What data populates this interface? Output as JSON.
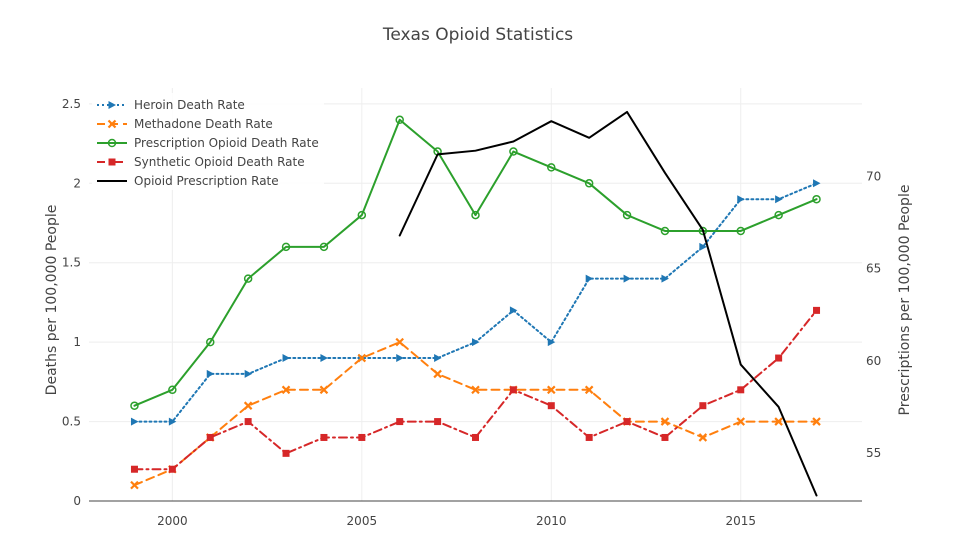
{
  "chart_data": {
    "type": "line",
    "title": "Texas Opioid Statistics",
    "xlabel": "",
    "ylabel": "Deaths per 100,000 People",
    "y2label": "Prescriptions per 100,000 People",
    "xlim": [
      1997.8,
      2018.2
    ],
    "ylim": [
      0,
      2.6
    ],
    "y2lim": [
      52.4,
      74.8
    ],
    "x_ticks": [
      2000,
      2005,
      2010,
      2015
    ],
    "y_ticks": [
      0,
      0.5,
      1,
      1.5,
      2,
      2.5
    ],
    "y_tick_labels": [
      "0",
      "0.5",
      "1",
      "1.5",
      "2",
      "2.5"
    ],
    "y2_ticks": [
      55,
      60,
      65,
      70
    ],
    "grid": true,
    "legend_position": "top-left",
    "series": [
      {
        "name": "Heroin Death Rate",
        "axis": "y",
        "color": "#1f77b4",
        "dash": "dotted",
        "marker": "triangle-right",
        "x": [
          1999,
          2000,
          2001,
          2002,
          2003,
          2004,
          2005,
          2006,
          2007,
          2008,
          2009,
          2010,
          2011,
          2012,
          2013,
          2014,
          2015,
          2016,
          2017
        ],
        "values": [
          0.5,
          0.5,
          0.8,
          0.8,
          0.9,
          0.9,
          0.9,
          0.9,
          0.9,
          1.0,
          1.2,
          1.0,
          1.4,
          1.4,
          1.4,
          1.6,
          1.9,
          1.9,
          2.0
        ]
      },
      {
        "name": "Methadone Death Rate",
        "axis": "y",
        "color": "#ff7f0e",
        "dash": "dashed",
        "marker": "x",
        "x": [
          1999,
          2000,
          2001,
          2002,
          2003,
          2004,
          2005,
          2006,
          2007,
          2008,
          2009,
          2010,
          2011,
          2012,
          2013,
          2014,
          2015,
          2016,
          2017
        ],
        "values": [
          0.1,
          0.2,
          0.4,
          0.6,
          0.7,
          0.7,
          0.9,
          1.0,
          0.8,
          0.7,
          0.7,
          0.7,
          0.7,
          0.5,
          0.5,
          0.4,
          0.5,
          0.5,
          0.5
        ]
      },
      {
        "name": "Prescription Opioid Death Rate",
        "axis": "y",
        "color": "#2ca02c",
        "dash": "solid",
        "marker": "circle-open",
        "x": [
          1999,
          2000,
          2001,
          2002,
          2003,
          2004,
          2005,
          2006,
          2007,
          2008,
          2009,
          2010,
          2011,
          2012,
          2013,
          2014,
          2015,
          2016,
          2017
        ],
        "values": [
          0.6,
          0.7,
          1.0,
          1.4,
          1.6,
          1.6,
          1.8,
          2.4,
          2.2,
          1.8,
          2.2,
          2.1,
          2.0,
          1.8,
          1.7,
          1.7,
          1.7,
          1.8,
          1.9
        ]
      },
      {
        "name": "Synthetic Opioid Death Rate",
        "axis": "y",
        "color": "#d62728",
        "dash": "dashdot",
        "marker": "square",
        "x": [
          1999,
          2000,
          2001,
          2002,
          2003,
          2004,
          2005,
          2006,
          2007,
          2008,
          2009,
          2010,
          2011,
          2012,
          2013,
          2014,
          2015,
          2016,
          2017
        ],
        "values": [
          0.2,
          0.2,
          0.4,
          0.5,
          0.3,
          0.4,
          0.4,
          0.5,
          0.5,
          0.4,
          0.7,
          0.6,
          0.4,
          0.5,
          0.4,
          0.6,
          0.7,
          0.9,
          1.2
        ]
      },
      {
        "name": "Opioid Prescription Rate",
        "axis": "y2",
        "color": "#000000",
        "dash": "solid",
        "marker": "none",
        "x": [
          2006,
          2007,
          2008,
          2009,
          2010,
          2011,
          2012,
          2013,
          2014,
          2015,
          2016,
          2017
        ],
        "values": [
          66.8,
          71.2,
          71.4,
          71.9,
          73.0,
          72.1,
          73.5,
          70.2,
          67.1,
          59.8,
          57.5,
          52.7
        ]
      }
    ]
  }
}
